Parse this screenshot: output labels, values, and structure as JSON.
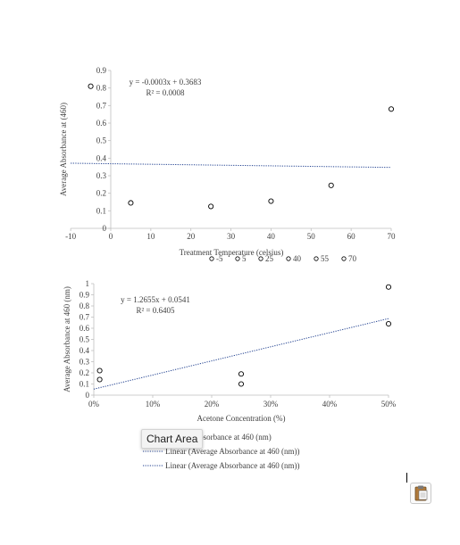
{
  "chart_data": [
    {
      "type": "scatter",
      "ylabel": "Average Absorbance at (460)",
      "xlabel": "Treatment Temperature (celsius)",
      "xlim": [
        -10,
        70
      ],
      "ylim": [
        0,
        0.9
      ],
      "xticks": [
        "-10",
        "0",
        "10",
        "20",
        "30",
        "40",
        "50",
        "60",
        "70"
      ],
      "yticks": [
        "0",
        "0.1",
        "0.2",
        "0.3",
        "0.4",
        "0.5",
        "0.6",
        "0.7",
        "0.8",
        "0.9"
      ],
      "points": [
        {
          "x": -5,
          "y": 0.81
        },
        {
          "x": 5,
          "y": 0.145
        },
        {
          "x": 25,
          "y": 0.125
        },
        {
          "x": 40,
          "y": 0.155
        },
        {
          "x": 55,
          "y": 0.245
        },
        {
          "x": 70,
          "y": 0.68
        }
      ],
      "trendline": {
        "slope": -0.0003,
        "intercept": 0.3683,
        "x_from": -10,
        "x_to": 70
      },
      "equation": "y = -0.0003x + 0.3683",
      "r2": "R² = 0.0008",
      "legend": [
        "-5",
        "5",
        "25",
        "40",
        "55",
        "70"
      ],
      "legend_position": "bottom",
      "grid": false
    },
    {
      "type": "scatter",
      "ylabel": "Average Absorbance at 460 (nm)",
      "xlabel": "Acetone Concentration (%)",
      "xlim": [
        0,
        0.5
      ],
      "ylim": [
        0,
        1
      ],
      "xticks": [
        "0%",
        "10%",
        "20%",
        "30%",
        "40%",
        "50%"
      ],
      "yticks": [
        "0",
        "0.1",
        "0.2",
        "0.3",
        "0.4",
        "0.5",
        "0.6",
        "0.7",
        "0.8",
        "0.9",
        "1"
      ],
      "points": [
        {
          "x": 0.01,
          "y": 0.22
        },
        {
          "x": 0.01,
          "y": 0.14
        },
        {
          "x": 0.25,
          "y": 0.19
        },
        {
          "x": 0.25,
          "y": 0.1
        },
        {
          "x": 0.5,
          "y": 0.97
        },
        {
          "x": 0.5,
          "y": 0.64
        }
      ],
      "trendline": {
        "slope": 1.2655,
        "intercept": 0.0541,
        "x_from": 0.0,
        "x_to": 0.5
      },
      "equation": "y = 1.2655x + 0.0541",
      "r2": "R² = 0.6405",
      "legend": [
        "Average Absorbance at 460 (nm)",
        "Linear (Average Absorbance at 460 (nm))",
        "Linear (Average Absorbance at 460 (nm))"
      ],
      "legend_position": "bottom",
      "grid": false
    }
  ],
  "tooltip": {
    "label": "Chart Area"
  },
  "paste_icon": "clipboard-icon",
  "colors": {
    "axis": "#bfbfbf",
    "text": "#404040",
    "marker": "#000000",
    "trend": "#1f3f8f"
  }
}
